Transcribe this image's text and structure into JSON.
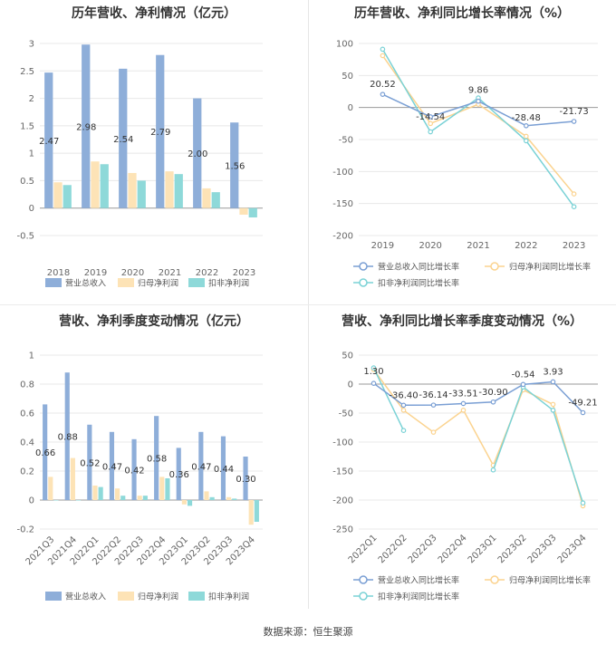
{
  "footer": "数据来源：恒生聚源",
  "colors": {
    "revenue": "#8eaed9",
    "net": "#fde3b6",
    "deducted": "#8ed9d9",
    "grid": "#e8e8e8",
    "axis": "#999999"
  },
  "chart_data": [
    {
      "type": "bar",
      "title": "历年营收、净利情况（亿元）",
      "categories": [
        "2018",
        "2019",
        "2020",
        "2021",
        "2022",
        "2023"
      ],
      "series": [
        {
          "name": "营业总收入",
          "values": [
            2.47,
            2.98,
            2.54,
            2.79,
            2.0,
            1.56
          ],
          "labels": [
            "2.47",
            "2.98",
            "2.54",
            "2.79",
            "2.00",
            "1.56"
          ]
        },
        {
          "name": "归母净利润",
          "values": [
            0.47,
            0.85,
            0.64,
            0.67,
            0.36,
            -0.12
          ]
        },
        {
          "name": "扣非净利润",
          "values": [
            0.42,
            0.8,
            0.5,
            0.62,
            0.29,
            -0.17
          ]
        }
      ],
      "ylim": [
        -0.5,
        3
      ],
      "yticks": [
        "-0.5",
        "0",
        "0.5",
        "1",
        "1.5",
        "2",
        "2.5",
        "3"
      ],
      "grid": true,
      "legend": "bottom"
    },
    {
      "type": "line",
      "title": "历年营收、净利同比增长率情况（%）",
      "categories": [
        "2019",
        "2020",
        "2021",
        "2022",
        "2023"
      ],
      "series": [
        {
          "name": "营业总收入同比增长率",
          "values": [
            20.52,
            -14.54,
            9.86,
            -28.48,
            -21.73
          ],
          "labels": [
            "20.52",
            "-14.54",
            "9.86",
            "-28.48",
            "-21.73"
          ]
        },
        {
          "name": "归母净利润同比增长率",
          "values": [
            81,
            -25,
            5,
            -45,
            -135
          ]
        },
        {
          "name": "扣非净利润同比增长率",
          "values": [
            91,
            -38,
            15,
            -52,
            -155
          ]
        }
      ],
      "ylim": [
        -200,
        100
      ],
      "yticks": [
        "-200",
        "-150",
        "-100",
        "-50",
        "0",
        "50",
        "100"
      ],
      "grid": true,
      "legend": "bottom"
    },
    {
      "type": "bar",
      "title": "营收、净利季度变动情况（亿元）",
      "categories": [
        "2021Q3",
        "2021Q4",
        "2022Q1",
        "2022Q2",
        "2022Q3",
        "2022Q4",
        "2023Q1",
        "2023Q2",
        "2023Q3",
        "2023Q4"
      ],
      "series": [
        {
          "name": "营业总收入",
          "values": [
            0.66,
            0.88,
            0.52,
            0.47,
            0.42,
            0.58,
            0.36,
            0.47,
            0.44,
            0.3
          ],
          "labels": [
            "0.66",
            "0.88",
            "0.52",
            "0.47",
            "0.42",
            "0.58",
            "0.36",
            "0.47",
            "0.44",
            "0.30"
          ]
        },
        {
          "name": "归母净利润",
          "values": [
            0.16,
            0.29,
            0.1,
            0.08,
            0.03,
            0.16,
            -0.03,
            0.06,
            0.02,
            -0.17
          ]
        },
        {
          "name": "扣非净利润",
          "values": [
            0.0,
            0.0,
            0.09,
            0.03,
            0.03,
            0.15,
            -0.04,
            0.02,
            0.01,
            -0.15
          ]
        }
      ],
      "ylim": [
        -0.2,
        1
      ],
      "yticks": [
        "-0.2",
        "0",
        "0.2",
        "0.4",
        "0.6",
        "0.8",
        "1"
      ],
      "grid": true,
      "legend": "bottom"
    },
    {
      "type": "line",
      "title": "营收、净利同比增长率季度变动情况（%）",
      "categories": [
        "2022Q1",
        "2022Q2",
        "2022Q3",
        "2022Q4",
        "2023Q1",
        "2023Q2",
        "2023Q3",
        "2023Q4"
      ],
      "series": [
        {
          "name": "营业总收入同比增长率",
          "values": [
            1.3,
            -36.4,
            -36.14,
            -33.51,
            -30.9,
            -0.54,
            3.93,
            -49.21
          ],
          "labels": [
            "1.30",
            "-36.40",
            "-36.14",
            "-33.51",
            "-30.90",
            "-0.54",
            "3.93",
            "-49.21"
          ]
        },
        {
          "name": "归母净利润同比增长率",
          "values": [
            25,
            -45,
            -83,
            -45,
            -140,
            -10,
            -35,
            -210
          ]
        },
        {
          "name": "扣非净利润同比增长率",
          "values": [
            28,
            -80,
            null,
            null,
            -148,
            -5,
            -45,
            -205
          ]
        }
      ],
      "ylim": [
        -250,
        50
      ],
      "yticks": [
        "-250",
        "-200",
        "-150",
        "-100",
        "-50",
        "0",
        "50"
      ],
      "grid": true,
      "legend": "bottom"
    }
  ]
}
